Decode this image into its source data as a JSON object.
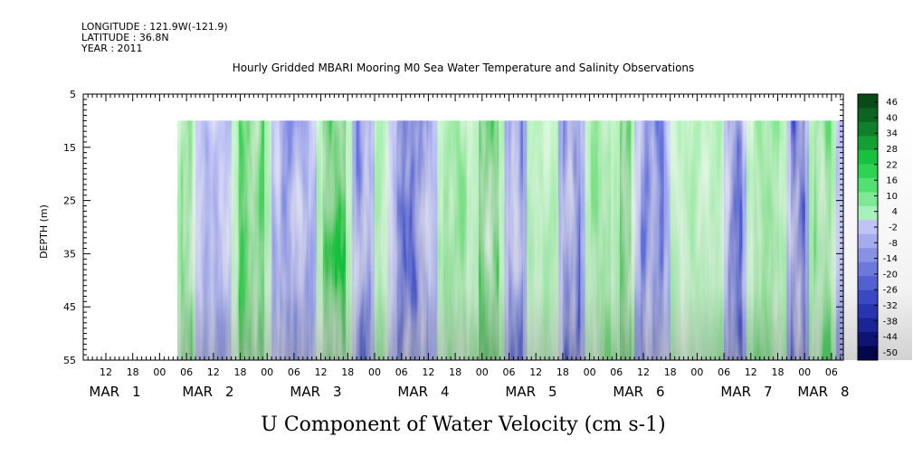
{
  "header": {
    "longitude": "LONGITUDE : 121.9W(-121.9)",
    "latitude": "LATITUDE : 36.8N",
    "year": "YEAR : 2011"
  },
  "chart_data": {
    "type": "heatmap",
    "title": "Hourly Gridded MBARI Mooring M0 Sea Water Temperature and Salinity Observations",
    "subtitle": "U Component of Water Velocity (cm s-1)",
    "ylabel": "DEPTH (m)",
    "ylim": [
      5,
      55
    ],
    "y_inverted": true,
    "y_ticks": [
      5,
      15,
      25,
      35,
      45,
      55
    ],
    "x_hour_labels": [
      "12",
      "18",
      "00",
      "06",
      "12",
      "18",
      "00",
      "06",
      "12",
      "18",
      "00",
      "06",
      "12",
      "18",
      "00",
      "06",
      "12",
      "18",
      "00",
      "06",
      "12",
      "18",
      "00",
      "06",
      "12",
      "18",
      "00",
      "06"
    ],
    "x_day_labels": [
      "MAR 1",
      "MAR 2",
      "MAR 3",
      "MAR 4",
      "MAR 5",
      "MAR 6",
      "MAR 7",
      "MAR 8"
    ],
    "data_depth_range_m": [
      10,
      55
    ],
    "colorbar": {
      "min": -50,
      "max": 50,
      "labels": [
        "46",
        "40",
        "34",
        "28",
        "22",
        "16",
        "10",
        "4",
        "-2",
        "-8",
        "-14",
        "-20",
        "-26",
        "-32",
        "-38",
        "-44",
        "-50"
      ],
      "negative_color": "#2233cc",
      "positive_color": "#00c040"
    },
    "sign_by_hour": [
      {
        "from_hour": 16,
        "to_hour": 20,
        "sign": "+"
      },
      {
        "from_hour": 20,
        "to_hour": 28,
        "sign": "-"
      },
      {
        "from_hour": 28,
        "to_hour": 37,
        "sign": "+"
      },
      {
        "from_hour": 37,
        "to_hour": 47,
        "sign": "-"
      },
      {
        "from_hour": 47,
        "to_hour": 55,
        "sign": "+"
      },
      {
        "from_hour": 55,
        "to_hour": 60,
        "sign": "-"
      },
      {
        "from_hour": 60,
        "to_hour": 63,
        "sign": "+"
      },
      {
        "from_hour": 63,
        "to_hour": 74,
        "sign": "-"
      },
      {
        "from_hour": 74,
        "to_hour": 82,
        "sign": "+"
      },
      {
        "from_hour": 82,
        "to_hour": 89,
        "sign": "+"
      },
      {
        "from_hour": 89,
        "to_hour": 94,
        "sign": "-"
      },
      {
        "from_hour": 94,
        "to_hour": 101,
        "sign": "+"
      },
      {
        "from_hour": 101,
        "to_hour": 107,
        "sign": "-"
      },
      {
        "from_hour": 107,
        "to_hour": 114,
        "sign": "+"
      },
      {
        "from_hour": 114,
        "to_hour": 118,
        "sign": "+"
      },
      {
        "from_hour": 118,
        "to_hour": 126,
        "sign": "-"
      },
      {
        "from_hour": 126,
        "to_hour": 138,
        "sign": "+"
      },
      {
        "from_hour": 138,
        "to_hour": 143,
        "sign": "-"
      },
      {
        "from_hour": 143,
        "to_hour": 152,
        "sign": "+"
      },
      {
        "from_hour": 152,
        "to_hour": 157,
        "sign": "-"
      },
      {
        "from_hour": 157,
        "to_hour": 163,
        "sign": "+"
      },
      {
        "from_hour": 163,
        "to_hour": 166,
        "sign": "-"
      },
      {
        "from_hour": 166,
        "to_hour": 174,
        "sign": "+"
      },
      {
        "from_hour": 174,
        "to_hour": 176,
        "sign": "-"
      },
      {
        "from_hour": 176,
        "to_hour": 180,
        "sign": "+"
      }
    ]
  }
}
